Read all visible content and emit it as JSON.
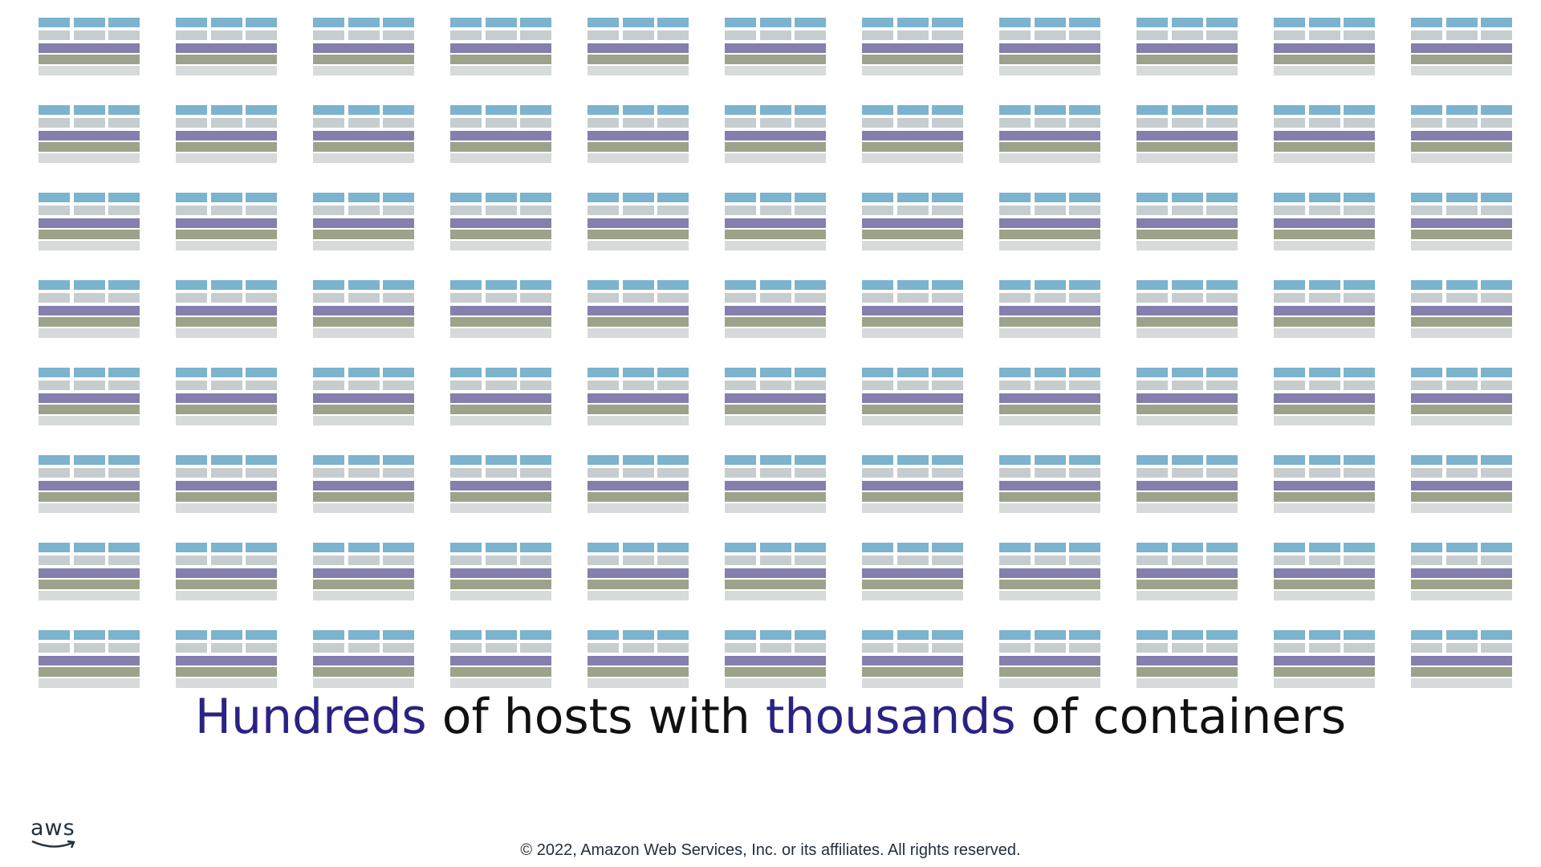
{
  "grid": {
    "rows": 8,
    "columns": 11,
    "host_layers": [
      "light-blue-cells",
      "light-gray-cells",
      "purple-bar",
      "olive-bar",
      "light-gray-bar"
    ]
  },
  "colors": {
    "blue": "#7cb3ce",
    "gray": "#c7cdcf",
    "purple": "#847fad",
    "olive": "#9da38a",
    "light": "#d6dadb",
    "accent": "#2a2385"
  },
  "headline": {
    "part1": "Hundreds",
    "part2": " of hosts with ",
    "part3": "thousands",
    "part4": " of containers"
  },
  "logo": {
    "text": "aws",
    "icon": "aws-smile-icon"
  },
  "footer": {
    "copyright": "© 2022, Amazon Web Services, Inc. or its affiliates. All rights reserved."
  }
}
